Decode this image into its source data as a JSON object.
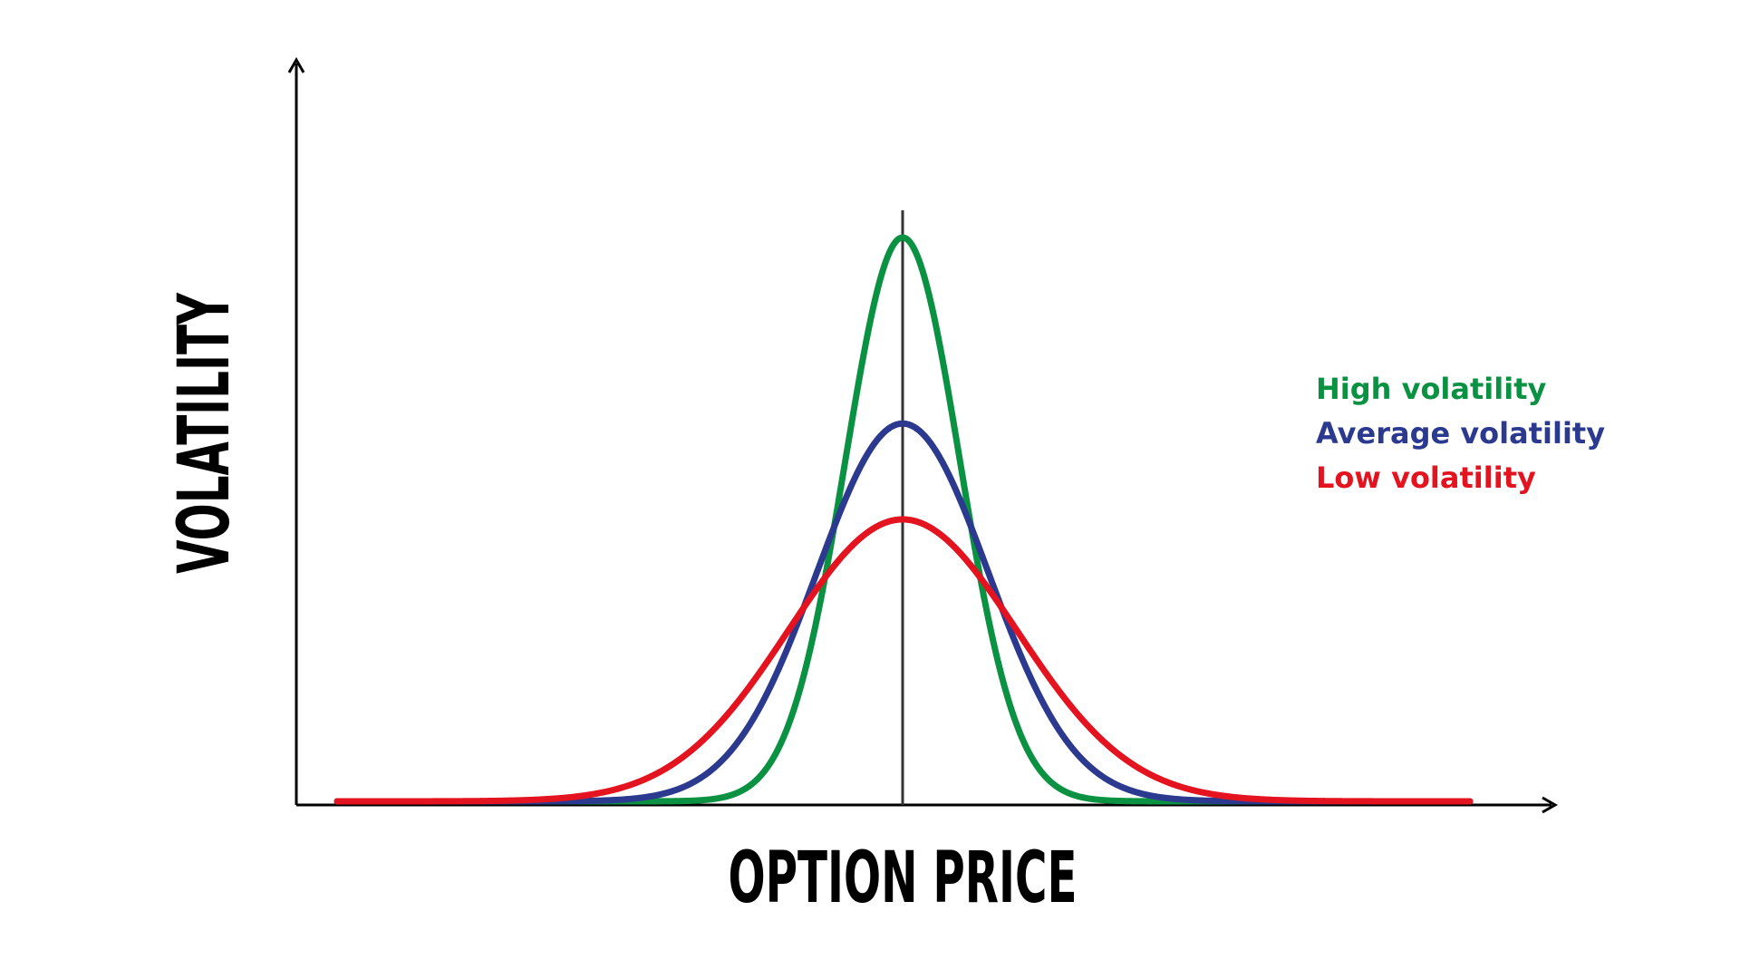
{
  "chart_data": {
    "type": "line",
    "title": "",
    "xlabel": "OPTION PRICE",
    "ylabel": "VOLATILITY",
    "grid": false,
    "legend_position": "right",
    "series": [
      {
        "name": "High volatility",
        "color": "#0a9142",
        "peak": 1.0,
        "spread": 0.9
      },
      {
        "name": "Average volatility",
        "color": "#2b3a8f",
        "peak": 0.67,
        "spread": 1.35
      },
      {
        "name": "Low volatility",
        "color": "#e3141f",
        "peak": 0.5,
        "spread": 1.8
      }
    ],
    "colors": {
      "axis": "#000000",
      "center_line": "#333333"
    }
  }
}
